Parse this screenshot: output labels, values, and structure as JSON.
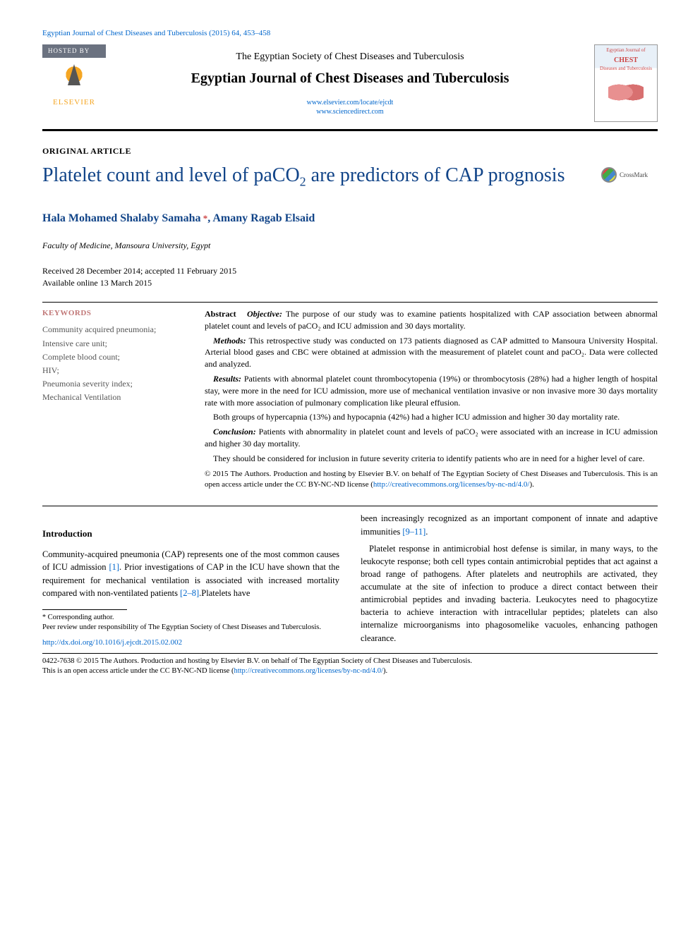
{
  "citation": "Egyptian Journal of Chest Diseases and Tuberculosis (2015) 64, 453–458",
  "header": {
    "hosted_by": "HOSTED BY",
    "elsevier": "ELSEVIER",
    "society": "The Egyptian Society of Chest Diseases and Tuberculosis",
    "journal": "Egyptian Journal of Chest Diseases and Tuberculosis",
    "link1": "www.elsevier.com/locate/ejcdt",
    "link2": "www.sciencedirect.com",
    "cover_top": "Egyptian Journal of",
    "cover_title": "CHEST",
    "cover_sub": "Diseases and Tuberculosis"
  },
  "article_type": "ORIGINAL ARTICLE",
  "title_pre": "Platelet count and level of paCO",
  "title_sub": "2",
  "title_post": " are predictors of CAP prognosis",
  "crossmark": "CrossMark",
  "authors": {
    "a1": "Hala Mohamed Shalaby Samaha",
    "a2": "Amany Ragab Elsaid",
    "corr": " *"
  },
  "affiliation": "Faculty of Medicine, Mansoura University, Egypt",
  "dates_line1": "Received 28 December 2014; accepted 11 February 2015",
  "dates_line2": "Available online 13 March 2015",
  "keywords": {
    "heading": "KEYWORDS",
    "items": "Community acquired pneumonia;\nIntensive care unit;\nComplete blood count;\nHIV;\nPneumonia severity index;\nMechanical Ventilation"
  },
  "abstract": {
    "lead": "Abstract",
    "obj_label": "Objective:",
    "obj": " The purpose of our study was to examine patients hospitalized with CAP association between abnormal platelet count and levels of paCO₂ and ICU admission and 30 days mortality.",
    "meth_label": "Methods:",
    "meth": " This retrospective study was conducted on 173 patients diagnosed as CAP admitted to Mansoura University Hospital. Arterial blood gases and CBC were obtained at admission with the measurement of platelet count and paCO₂. Data were collected and analyzed.",
    "res_label": "Results:",
    "res1": " Patients with abnormal platelet count thrombocytopenia (19%) or thrombocytosis (28%) had a higher length of hospital stay, were more in the need for ICU admission, more use of mechanical ventilation invasive or non invasive more 30 days mortality rate with more association of pulmonary complication like pleural effusion.",
    "res2": "Both groups of hypercapnia (13%) and hypocapnia (42%) had a higher ICU admission and higher 30 day mortality rate.",
    "con_label": "Conclusion:",
    "con1": " Patients with abnormality in platelet count and levels of paCO₂ were associated with an increase in ICU admission and higher 30 day mortality.",
    "con2": "They should be considered for inclusion in future severity criteria to identify patients who are in need for a higher level of care.",
    "copy": "© 2015 The Authors. Production and hosting by Elsevier B.V. on behalf of The Egyptian Society of Chest Diseases and Tuberculosis. This is an open access article under the CC BY-NC-ND license (",
    "copy_link": "http://creativecommons.org/licenses/by-nc-nd/4.0/",
    "copy_end": ")."
  },
  "intro": {
    "heading": "Introduction",
    "col1_p1a": "Community-acquired pneumonia (CAP) represents one of the most common causes of ICU admission ",
    "col1_ref1": "[1]",
    "col1_p1b": ". Prior investigations of CAP in the ICU have shown that the requirement for mechanical ventilation is associated with increased mortality compared with non-ventilated patients ",
    "col1_ref2": "[2–8]",
    "col1_p1c": ".Platelets have",
    "col2_p1a": "been increasingly recognized as an important component of innate and adaptive immunities ",
    "col2_ref1": "[9–11]",
    "col2_p1b": ".",
    "col2_p2": "Platelet response in antimicrobial host defense is similar, in many ways, to the leukocyte response; both cell types contain antimicrobial peptides that act against a broad range of pathogens. After platelets and neutrophils are activated, they accumulate at the site of infection to produce a direct contact between their antimicrobial peptides and invading bacteria. Leukocytes need to phagocytize bacteria to achieve interaction with intracellular peptides; platelets can also internalize microorganisms into phagosomelike vacuoles, enhancing pathogen clearance."
  },
  "footnotes": {
    "corr": "Corresponding author.",
    "peer": "Peer review under responsibility of The Egyptian Society of Chest Diseases and Tuberculosis.",
    "doi": "http://dx.doi.org/10.1016/j.ejcdt.2015.02.002"
  },
  "footer": {
    "issn": "0422-7638 © 2015 The Authors. Production and hosting by Elsevier B.V. on behalf of The Egyptian Society of Chest Diseases and Tuberculosis.",
    "license": "This is an open access article under the CC BY-NC-ND license (",
    "license_link": "http://creativecommons.org/licenses/by-nc-nd/4.0/",
    "license_end": ")."
  },
  "colors": {
    "link": "#0066cc",
    "title": "#114488",
    "kw_heading": "#c17878"
  }
}
